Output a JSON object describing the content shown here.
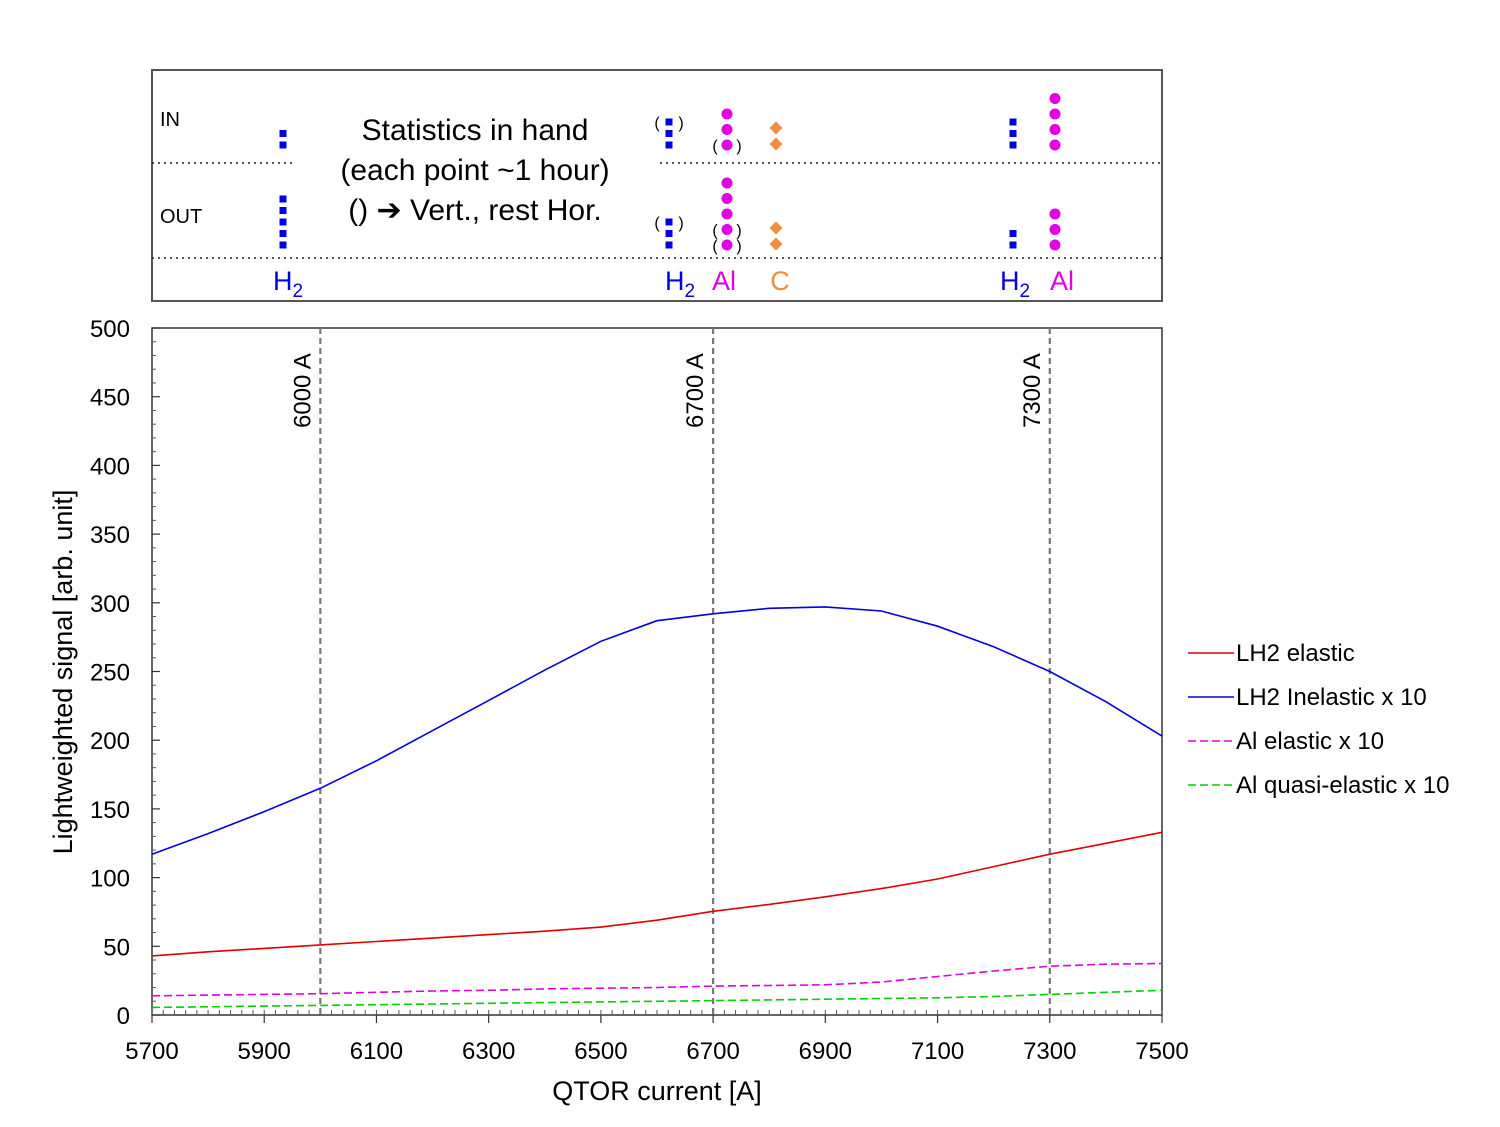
{
  "chart_data": [
    {
      "type": "line",
      "xlabel": "QTOR current [A]",
      "ylabel": "Lightweighted signal [arb. unit]",
      "xlim": [
        5700,
        7500
      ],
      "ylim": [
        0,
        500
      ],
      "x_ticks": [
        5700,
        5900,
        6100,
        6300,
        6500,
        6700,
        6900,
        7100,
        7300,
        7500
      ],
      "y_ticks": [
        0,
        50,
        100,
        150,
        200,
        250,
        300,
        350,
        400,
        450,
        500
      ],
      "grid": false,
      "legend_position": "right",
      "markers": [
        {
          "x": 6000,
          "label": "6000 A"
        },
        {
          "x": 6700,
          "label": "6700 A"
        },
        {
          "x": 7300,
          "label": "7300 A"
        }
      ],
      "series": [
        {
          "name": "LH2 elastic",
          "color": "#e00000",
          "style": "solid",
          "x": [
            5700,
            5800,
            5900,
            6000,
            6100,
            6200,
            6300,
            6400,
            6500,
            6600,
            6700,
            6800,
            6900,
            7000,
            7100,
            7200,
            7300,
            7400,
            7500
          ],
          "y": [
            43,
            46,
            48.5,
            51,
            53.5,
            56,
            58.5,
            61,
            64,
            69,
            75.5,
            80.5,
            86,
            92,
            99,
            108,
            117,
            125,
            133
          ]
        },
        {
          "name": "LH2 Inelastic x 10",
          "color": "#0000e0",
          "style": "solid",
          "x": [
            5700,
            5800,
            5900,
            6000,
            6100,
            6200,
            6300,
            6400,
            6500,
            6600,
            6700,
            6800,
            6900,
            7000,
            7100,
            7200,
            7300,
            7400,
            7500
          ],
          "y": [
            117,
            132,
            148,
            165,
            185,
            207,
            229,
            251,
            272,
            287,
            292,
            296,
            297,
            294,
            283,
            268,
            250,
            228,
            203
          ]
        },
        {
          "name": "Al elastic x 10",
          "color": "#e000e0",
          "style": "dashed",
          "x": [
            5700,
            5800,
            5900,
            6000,
            6100,
            6200,
            6300,
            6400,
            6500,
            6600,
            6700,
            6800,
            6900,
            7000,
            7100,
            7200,
            7300,
            7400,
            7500
          ],
          "y": [
            14,
            14.5,
            15,
            15.5,
            16.5,
            17.5,
            18,
            19,
            19.5,
            20,
            21,
            21.5,
            22,
            24,
            28,
            32,
            35.5,
            37,
            37.5
          ]
        },
        {
          "name": "Al quasi-elastic x 10",
          "color": "#00d000",
          "style": "dashed",
          "x": [
            5700,
            5800,
            5900,
            6000,
            6100,
            6200,
            6300,
            6400,
            6500,
            6600,
            6700,
            6800,
            6900,
            7000,
            7100,
            7200,
            7300,
            7400,
            7500
          ],
          "y": [
            5.5,
            6,
            6.5,
            7,
            7.5,
            8,
            8.5,
            9,
            9.5,
            10,
            10.5,
            11,
            11.5,
            12,
            12.5,
            13.5,
            15,
            16.5,
            18
          ]
        }
      ]
    },
    {
      "type": "scatter",
      "title": "Statistics in hand\n(each point ~1 hour)\n() ➔ Vert., rest Hor.",
      "row_labels": [
        "IN",
        "OUT"
      ],
      "group_labels": [
        {
          "text": "H",
          "sub": "2",
          "color": "#0000e0"
        },
        {
          "text": "H",
          "sub": "2",
          "color": "#0000e0"
        },
        {
          "text": "Al",
          "sub": "",
          "color": "#e000e0"
        },
        {
          "text": "C",
          "sub": "",
          "color": "#f08c40"
        },
        {
          "text": "H",
          "sub": "2",
          "color": "#0000e0"
        },
        {
          "text": "Al",
          "sub": "",
          "color": "#e000e0"
        }
      ],
      "columns": [
        {
          "target": "H2",
          "current": 6000,
          "marker": "square",
          "color": "#0000e0",
          "in": 2,
          "out": 5,
          "in_vertical": 0,
          "out_vertical": 0
        },
        {
          "target": "H2",
          "current": 6700,
          "marker": "square",
          "color": "#0000e0",
          "in": 3,
          "out": 3,
          "in_vertical": 1,
          "out_vertical": 1
        },
        {
          "target": "Al",
          "current": 6700,
          "marker": "circle",
          "color": "#e000e0",
          "in": 3,
          "out": 5,
          "in_vertical": 1,
          "out_vertical": 2
        },
        {
          "target": "C",
          "current": 6700,
          "marker": "diamond",
          "color": "#f08c40",
          "in": 2,
          "out": 2,
          "in_vertical": 0,
          "out_vertical": 0
        },
        {
          "target": "H2",
          "current": 7300,
          "marker": "square",
          "color": "#0000e0",
          "in": 3,
          "out": 2,
          "in_vertical": 0,
          "out_vertical": 0
        },
        {
          "target": "Al",
          "current": 7300,
          "marker": "circle",
          "color": "#e000e0",
          "in": 4,
          "out": 3,
          "in_vertical": 0,
          "out_vertical": 0
        }
      ]
    }
  ]
}
